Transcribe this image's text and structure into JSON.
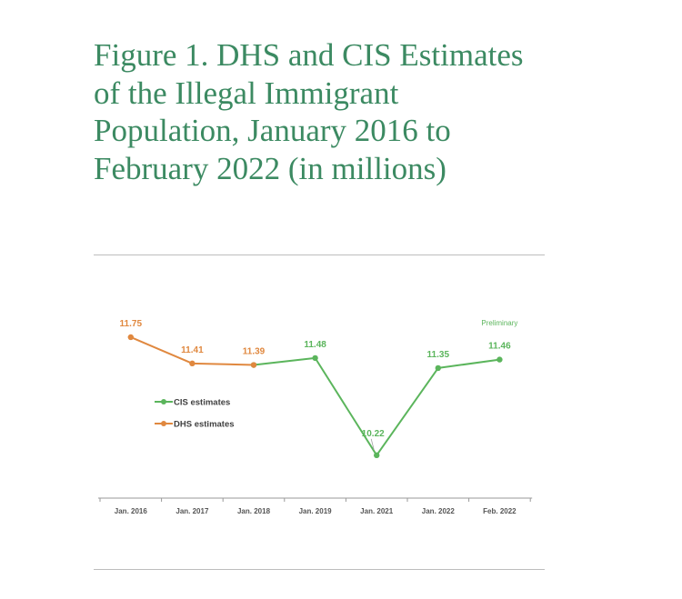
{
  "title": "Figure 1. DHS and CIS Estimates of the Illegal Immigrant Population, January 2016 to February 2022 (in millions)",
  "colors": {
    "title": "#3c8a62",
    "cis": "#5bb55c",
    "dhs": "#e0883f",
    "axis": "#9a9a9a"
  },
  "chart_data": {
    "type": "line",
    "categories": [
      "Jan. 2016",
      "Jan. 2017",
      "Jan. 2018",
      "Jan. 2019",
      "Jan. 2021",
      "Jan. 2022",
      "Feb. 2022"
    ],
    "series": [
      {
        "name": "DHS estimates",
        "color": "#e0883f",
        "values": [
          11.75,
          11.41,
          11.39,
          null,
          null,
          null,
          null
        ]
      },
      {
        "name": "CIS estimates",
        "color": "#5bb55c",
        "values": [
          null,
          null,
          11.39,
          11.48,
          10.22,
          11.35,
          11.46
        ]
      }
    ],
    "data_labels": [
      {
        "category": "Jan. 2016",
        "value": "11.75",
        "series": "DHS estimates"
      },
      {
        "category": "Jan. 2017",
        "value": "11.41",
        "series": "DHS estimates"
      },
      {
        "category": "Jan. 2018",
        "value": "11.39",
        "series": "DHS estimates"
      },
      {
        "category": "Jan. 2019",
        "value": "11.48",
        "series": "CIS estimates"
      },
      {
        "category": "Jan. 2021",
        "value": "10.22",
        "series": "CIS estimates"
      },
      {
        "category": "Jan. 2022",
        "value": "11.35",
        "series": "CIS estimates"
      },
      {
        "category": "Feb. 2022",
        "value": "11.46",
        "series": "CIS estimates"
      }
    ],
    "annotations": [
      {
        "text": "Preliminary",
        "category": "Feb. 2022"
      }
    ],
    "legend": [
      "CIS estimates",
      "DHS estimates"
    ],
    "legend_position": "left-middle",
    "ylim": [
      9.9,
      11.95
    ],
    "grid": false,
    "title": "",
    "xlabel": "",
    "ylabel": ""
  }
}
